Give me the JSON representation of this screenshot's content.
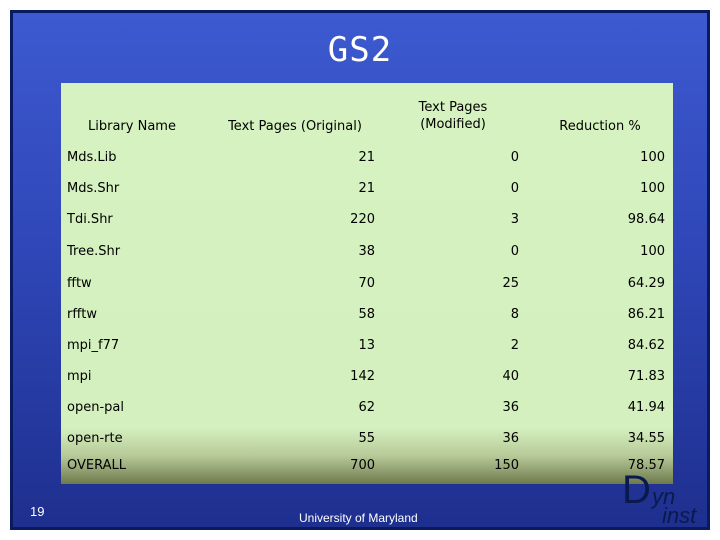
{
  "slide": {
    "title": "GS2",
    "slide_number": "19",
    "footer": "University of Maryland",
    "logo": {
      "big_letter": "D",
      "part1": "yn",
      "part2": "inst"
    }
  },
  "table": {
    "headers": [
      "Library Name",
      "Text Pages (Original)",
      "Text Pages\n(Modified)",
      "Reduction %"
    ],
    "rows": [
      [
        "Mds.Lib",
        "21",
        "0",
        "100"
      ],
      [
        "Mds.Shr",
        "21",
        "0",
        "100"
      ],
      [
        "Tdi.Shr",
        "220",
        "3",
        "98.64"
      ],
      [
        "Tree.Shr",
        "38",
        "0",
        "100"
      ],
      [
        "fftw",
        "70",
        "25",
        "64.29"
      ],
      [
        "rfftw",
        "58",
        "8",
        "86.21"
      ],
      [
        "mpi_f77",
        "13",
        "2",
        "84.62"
      ],
      [
        "mpi",
        "142",
        "40",
        "71.83"
      ],
      [
        "open-pal",
        "62",
        "36",
        "41.94"
      ],
      [
        "open-rte",
        "55",
        "36",
        "34.55"
      ],
      [
        "OVERALL",
        "700",
        "150",
        "78.57"
      ]
    ]
  }
}
